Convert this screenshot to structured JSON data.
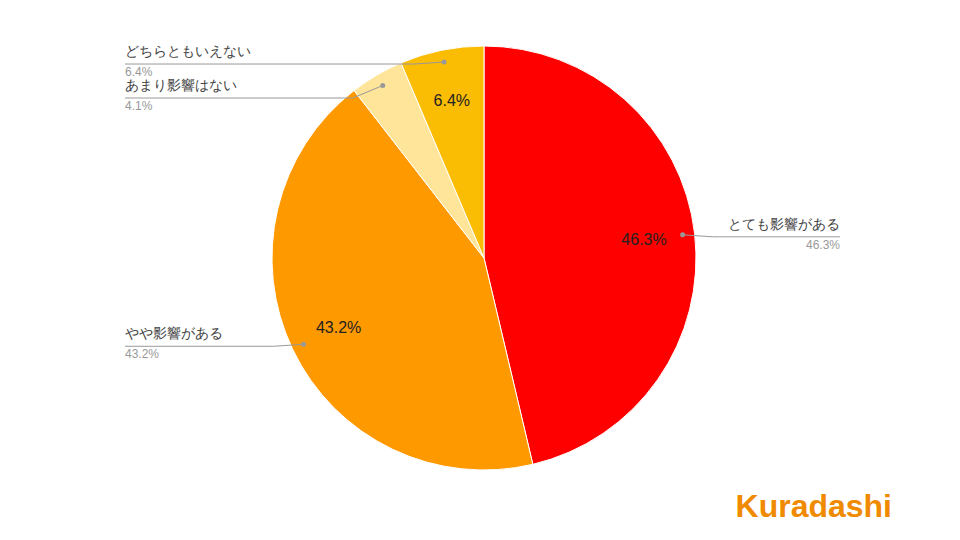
{
  "chart_data": {
    "type": "pie",
    "categories": [
      "とても影響がある",
      "やや影響がある",
      "あまり影響はない",
      "どちらともいえない"
    ],
    "values": [
      46.3,
      43.2,
      4.1,
      6.4
    ],
    "value_labels": [
      "46.3%",
      "43.2%",
      "4.1%",
      "6.4%"
    ],
    "colors": [
      "#ff0000",
      "#ff9900",
      "#ffe599",
      "#fbbc04"
    ],
    "data_labels": true,
    "annotation": "Kuradashi"
  }
}
